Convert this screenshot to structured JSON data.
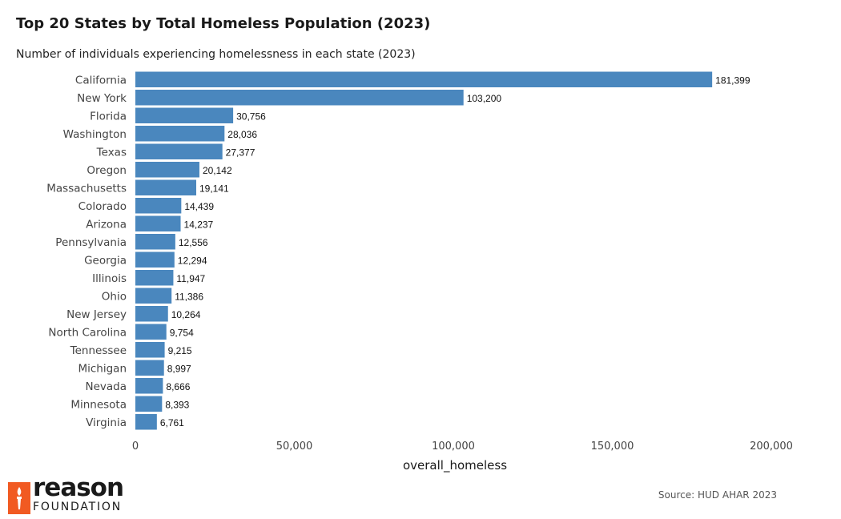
{
  "title": "Top 20 States by Total Homeless Population (2023)",
  "source": "Source: HUD AHAR 2023",
  "logo": {
    "word": "reason",
    "sub": "FOUNDATION",
    "icon": "torch-icon",
    "color": "#f15a22"
  },
  "colors": {
    "bar": "#4a87be"
  },
  "chart_data": {
    "type": "bar",
    "orientation": "horizontal",
    "title": "Number of individuals experiencing homelessness in each state (2023)",
    "xlabel": "overall_homeless",
    "ylabel": "",
    "xlim": [
      0,
      200000
    ],
    "xticks": [
      0,
      50000,
      100000,
      150000,
      200000
    ],
    "xtick_labels": [
      "0",
      "50,000",
      "100,000",
      "150,000",
      "200,000"
    ],
    "grid": false,
    "categories": [
      "California",
      "New York",
      "Florida",
      "Washington",
      "Texas",
      "Oregon",
      "Massachusetts",
      "Colorado",
      "Arizona",
      "Pennsylvania",
      "Georgia",
      "Illinois",
      "Ohio",
      "New Jersey",
      "North Carolina",
      "Tennessee",
      "Michigan",
      "Nevada",
      "Minnesota",
      "Virginia"
    ],
    "values": [
      181399,
      103200,
      30756,
      28036,
      27377,
      20142,
      19141,
      14439,
      14237,
      12556,
      12294,
      11947,
      11386,
      10264,
      9754,
      9215,
      8997,
      8666,
      8393,
      6761
    ],
    "value_labels": [
      "181,399",
      "103,200",
      "30,756",
      "28,036",
      "27,377",
      "20,142",
      "19,141",
      "14,439",
      "14,237",
      "12,556",
      "12,294",
      "11,947",
      "11,386",
      "10,264",
      "9,754",
      "9,215",
      "8,997",
      "8,666",
      "8,393",
      "6,761"
    ]
  }
}
